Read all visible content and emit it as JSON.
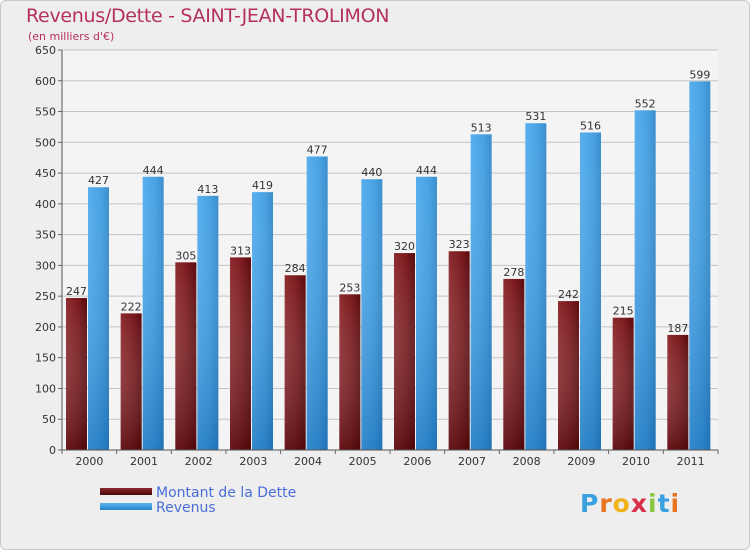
{
  "title": "Revenus/Dette - SAINT-JEAN-TROLIMON",
  "subtitle": "(en milliers d'€)",
  "logo": {
    "text": "Proxiti",
    "letters": [
      "P",
      "r",
      "o",
      "x",
      "i",
      "t",
      "i"
    ],
    "colors": [
      "#3aa0e0",
      "#e8741e",
      "#f2b21a",
      "#d9304a",
      "#8cc63f",
      "#3aa0e0",
      "#e8741e"
    ]
  },
  "legend": [
    {
      "label": "Montant de la Dette",
      "color": "#6b0f14"
    },
    {
      "label": "Revenus",
      "color": "#3a9ae0"
    }
  ],
  "chart_data": {
    "type": "bar",
    "title": "Revenus/Dette - SAINT-JEAN-TROLIMON",
    "subtitle": "(en milliers d'€)",
    "categories": [
      "2000",
      "2001",
      "2002",
      "2003",
      "2004",
      "2005",
      "2006",
      "2007",
      "2008",
      "2009",
      "2010",
      "2011"
    ],
    "series": [
      {
        "name": "Montant de la Dette",
        "color": "#7a1a1e",
        "values": [
          247,
          222,
          305,
          313,
          284,
          253,
          320,
          323,
          278,
          242,
          215,
          187
        ]
      },
      {
        "name": "Revenus",
        "color": "#3a9ae0",
        "values": [
          427,
          444,
          413,
          419,
          477,
          440,
          444,
          513,
          531,
          516,
          552,
          599
        ]
      }
    ],
    "ylim": [
      0,
      650
    ],
    "yticks": [
      "0",
      "50",
      "100",
      "150",
      "200",
      "250",
      "300",
      "350",
      "400",
      "450",
      "500",
      "550",
      "600",
      "650"
    ],
    "grid": true,
    "legend_position": "bottom-left",
    "show_data_labels": true
  }
}
